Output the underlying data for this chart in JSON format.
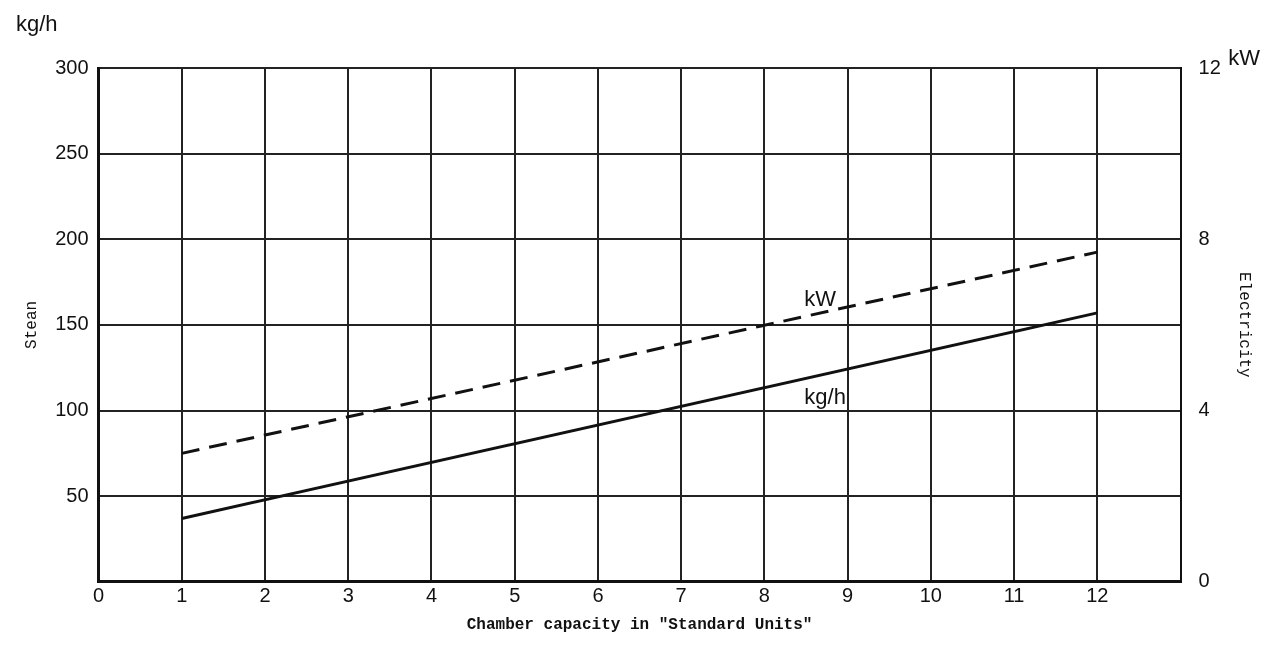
{
  "chart_data": {
    "type": "line",
    "xlabel": "Chamber capacity in \"Standard Units\"",
    "ylabel": "Stean",
    "y2label": "Electricity",
    "annotations": [
      "kg/h",
      "kW"
    ],
    "x": [
      1,
      12
    ],
    "series": [
      {
        "name": "kg/h",
        "color": "#111111",
        "values": [
          37,
          157
        ],
        "line_style": "solid"
      },
      {
        "name": "kW",
        "color": "#111111",
        "values": [
          3,
          7.7
        ],
        "axis": "y2",
        "line_style": "dashed"
      }
    ],
    "xlim": [
      0,
      13
    ],
    "xticks": [
      0,
      1,
      2,
      3,
      4,
      5,
      6,
      7,
      8,
      9,
      10,
      11,
      12
    ],
    "ylim": [
      0,
      300
    ],
    "yticks": [
      50,
      100,
      150,
      200,
      250,
      300
    ],
    "y2lim": [
      0,
      12
    ],
    "y2ticks": [
      0,
      4,
      8,
      12
    ],
    "grid": true,
    "legend": false,
    "marker": "none"
  }
}
